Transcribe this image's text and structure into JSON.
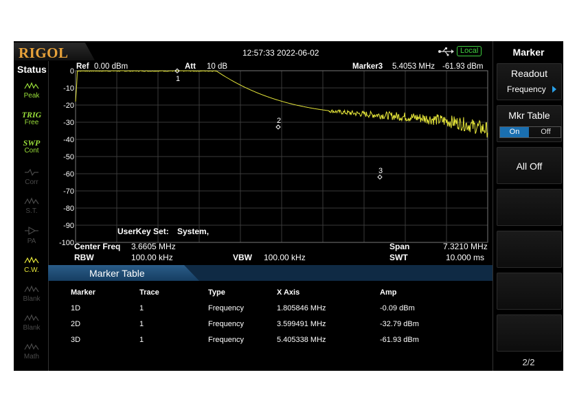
{
  "topbar": {
    "logo": "RIGOL",
    "datetime": "12:57:33 2022-06-02",
    "remote_status": "Local"
  },
  "status": {
    "title": "Status",
    "items": [
      {
        "glyph": "⌇",
        "label": "Peak",
        "state": "active"
      },
      {
        "glyph": "TRIG",
        "label": "Free",
        "state": "active"
      },
      {
        "glyph": "SWP",
        "label": "Cont",
        "state": "active"
      },
      {
        "glyph": "⌇",
        "label": "Corr",
        "state": "dim"
      },
      {
        "glyph": "⌇",
        "label": "S.T.",
        "state": "dim"
      },
      {
        "glyph": "⌇",
        "label": "PA",
        "state": "dim"
      },
      {
        "glyph": "⌇",
        "label": "C.W.",
        "state": "active"
      },
      {
        "glyph": "⌇",
        "label": "Blank",
        "state": "dim"
      },
      {
        "glyph": "⌇",
        "label": "Blank",
        "state": "dim"
      },
      {
        "glyph": "⌇",
        "label": "Math",
        "state": "dim"
      }
    ]
  },
  "header": {
    "ref_label": "Ref",
    "ref_value": "0.00 dBm",
    "att_label": "Att",
    "att_value": "10 dB",
    "marker_label": "Marker3",
    "marker_freq": "5.4053 MHz",
    "marker_amp": "-61.93 dBm"
  },
  "plot": {
    "y_ticks": [
      "0",
      "-10",
      "-20",
      "-30",
      "-40",
      "-50",
      "-60",
      "-70",
      "-80",
      "-90",
      "-100"
    ],
    "trace_color": "#e8e83a",
    "userkey_label": "UserKey Set:",
    "userkey_value": "System,",
    "markers": [
      {
        "label": "1",
        "freq_mhz": 1.805846,
        "amp_dbm": -0.09
      },
      {
        "label": "2",
        "freq_mhz": 3.599491,
        "amp_dbm": -32.79
      },
      {
        "label": "3",
        "freq_mhz": 5.405338,
        "amp_dbm": -61.93
      }
    ]
  },
  "footer": {
    "center_freq_label": "Center Freq",
    "center_freq_value": "3.6605 MHz",
    "span_label": "Span",
    "span_value": "7.3210 MHz",
    "rbw_label": "RBW",
    "rbw_value": "100.00 kHz",
    "vbw_label": "VBW",
    "vbw_value": "100.00 kHz",
    "swt_label": "SWT",
    "swt_value": "10.000 ms"
  },
  "marker_table": {
    "title": "Marker Table",
    "columns": [
      "Marker",
      "Trace",
      "Type",
      "X Axis",
      "Amp"
    ],
    "rows": [
      [
        "1D",
        "1",
        "Frequency",
        "1.805846 MHz",
        "-0.09 dBm"
      ],
      [
        "2D",
        "1",
        "Frequency",
        "3.599491 MHz",
        "-32.79 dBm"
      ],
      [
        "3D",
        "1",
        "Frequency",
        "5.405338 MHz",
        "-61.93 dBm"
      ]
    ]
  },
  "menu": {
    "title": "Marker",
    "readout_label": "Readout",
    "readout_value": "Frequency",
    "mkr_table_label": "Mkr Table",
    "on_label": "On",
    "off_label": "Off",
    "mkr_table_state": "On",
    "all_off_label": "All Off",
    "page": "2/2"
  },
  "colors": {
    "accent_blue": "#1a6fb0",
    "logo_orange": "#e8a23a",
    "status_green": "#3fcf3f"
  }
}
